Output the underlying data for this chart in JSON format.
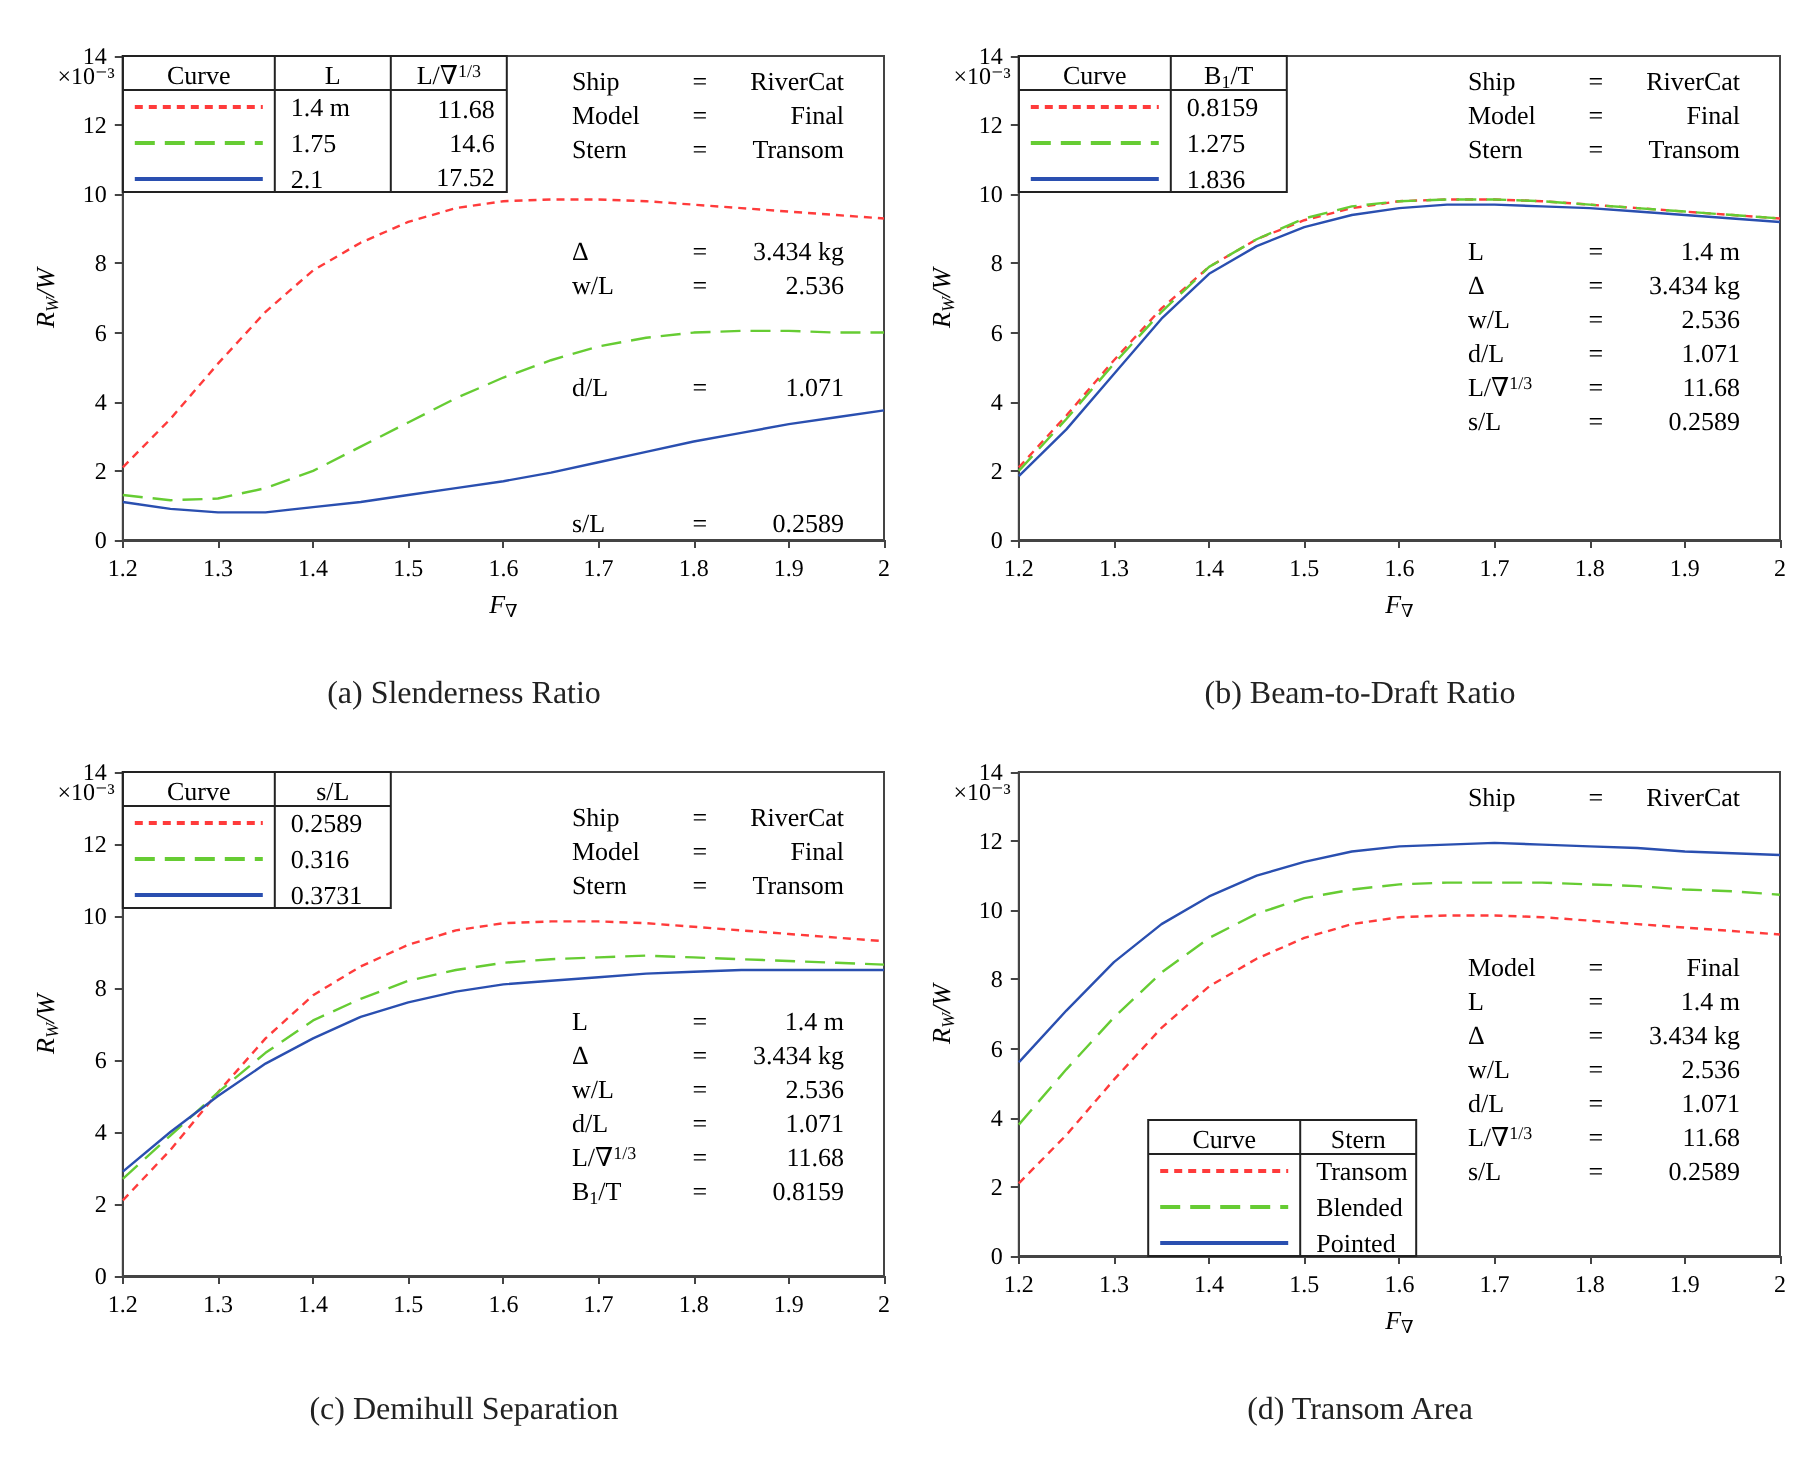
{
  "chart_data": [
    {
      "type": "line",
      "title": "(a) Slenderness Ratio",
      "subtitle": "×10⁻³",
      "xlabel": "F$_{∇}$",
      "ylabel": "R$_{W}$/W",
      "legend_title": "Curve",
      "legend": "top left",
      "marker": "none",
      "x": [
        1.2,
        1.25,
        1.3,
        1.35,
        1.4,
        1.45,
        1.5,
        1.55,
        1.6,
        1.65,
        1.7,
        1.75,
        1.8,
        1.85,
        1.9,
        1.95,
        2.0
      ],
      "xlim": [
        1.2,
        2
      ],
      "xticks": [
        1.2,
        1.3,
        1.4,
        1.5,
        1.6,
        1.7,
        1.8,
        1.9,
        2
      ],
      "ylim": [
        0,
        14
      ],
      "yticks": [
        0,
        2,
        4,
        6,
        8,
        10,
        12,
        14
      ],
      "series": [
        {
          "name": "1.4 m",
          "color": "#ff3b3b",
          "line_style": "dotted",
          "values": [
            2.1,
            3.5,
            5.1,
            6.6,
            7.8,
            8.6,
            9.2,
            9.6,
            9.8,
            9.85,
            9.85,
            9.8,
            9.7,
            9.6,
            9.5,
            9.4,
            9.3
          ]
        },
        {
          "name": "1.75",
          "color": "#66cc33",
          "line_style": "dashed",
          "values": [
            1.3,
            1.15,
            1.2,
            1.5,
            2.0,
            2.7,
            3.4,
            4.1,
            4.7,
            5.2,
            5.6,
            5.85,
            6.0,
            6.05,
            6.05,
            6.0,
            6.0
          ]
        },
        {
          "name": "2.1",
          "color": "#2a4fb0",
          "line_style": "solid",
          "values": [
            1.1,
            0.9,
            0.8,
            0.8,
            0.95,
            1.1,
            1.3,
            1.5,
            1.7,
            1.95,
            2.25,
            2.55,
            2.85,
            3.1,
            3.35,
            3.55,
            3.75
          ]
        }
      ],
      "annotations": [
        "L",
        "L/∇$^{1/3}$",
        "11.68",
        "14.6",
        "17.52",
        "Ship = RiverCat",
        "Model = Final",
        "Stern = Transom",
        "Δ = 3.434 kg",
        "w/L = 2.536",
        "d/L = 1.071",
        "s/L = 0.2589"
      ]
    },
    {
      "type": "line",
      "title": "(b) Beam-to-Draft Ratio",
      "subtitle": "×10⁻³",
      "xlabel": "F$_{∇}$",
      "ylabel": "R$_{W}$/W",
      "legend_title": "Curve",
      "legend": "top left",
      "marker": "none",
      "x": [
        1.2,
        1.25,
        1.3,
        1.35,
        1.4,
        1.45,
        1.5,
        1.55,
        1.6,
        1.65,
        1.7,
        1.75,
        1.8,
        1.85,
        1.9,
        1.95,
        2.0
      ],
      "xlim": [
        1.2,
        2
      ],
      "xticks": [
        1.2,
        1.3,
        1.4,
        1.5,
        1.6,
        1.7,
        1.8,
        1.9,
        2
      ],
      "ylim": [
        0,
        14
      ],
      "yticks": [
        0,
        2,
        4,
        6,
        8,
        10,
        12,
        14
      ],
      "series": [
        {
          "name": "0.8159",
          "color": "#ff3b3b",
          "line_style": "dotted",
          "values": [
            2.1,
            3.6,
            5.2,
            6.7,
            7.9,
            8.7,
            9.25,
            9.6,
            9.8,
            9.85,
            9.85,
            9.8,
            9.7,
            9.6,
            9.5,
            9.4,
            9.3
          ]
        },
        {
          "name": "1.275",
          "color": "#66cc33",
          "line_style": "dashed",
          "values": [
            2.0,
            3.5,
            5.1,
            6.6,
            7.9,
            8.7,
            9.3,
            9.65,
            9.8,
            9.85,
            9.85,
            9.8,
            9.7,
            9.6,
            9.5,
            9.4,
            9.3
          ]
        },
        {
          "name": "1.836",
          "color": "#2a4fb0",
          "line_style": "solid",
          "values": [
            1.85,
            3.2,
            4.8,
            6.4,
            7.7,
            8.5,
            9.05,
            9.4,
            9.6,
            9.7,
            9.7,
            9.65,
            9.6,
            9.5,
            9.4,
            9.3,
            9.2
          ]
        }
      ],
      "annotations": [
        "B$_{1}$/T",
        "Ship = RiverCat",
        "Model = Final",
        "Stern = Transom",
        "L = 1.4 m",
        "Δ = 3.434 kg",
        "w/L = 2.536",
        "d/L = 1.071",
        "L/∇$^{1/3}$ = 11.68",
        "s/L = 0.2589"
      ]
    },
    {
      "type": "line",
      "title": "(c) Demihull Separation",
      "subtitle": "×10⁻³",
      "ylabel": "R$_{W}$/W",
      "legend_title": "Curve",
      "legend": "top left",
      "marker": "none",
      "x": [
        1.2,
        1.25,
        1.3,
        1.35,
        1.4,
        1.45,
        1.5,
        1.55,
        1.6,
        1.65,
        1.7,
        1.75,
        1.8,
        1.85,
        1.9,
        1.95,
        2.0
      ],
      "xlim": [
        1.2,
        2
      ],
      "xticks": [
        1.2,
        1.3,
        1.4,
        1.5,
        1.6,
        1.7,
        1.8,
        1.9,
        2
      ],
      "ylim": [
        0,
        14
      ],
      "yticks": [
        0,
        2,
        4,
        6,
        8,
        10,
        12,
        14
      ],
      "series": [
        {
          "name": "0.2589",
          "color": "#ff3b3b",
          "line_style": "dotted",
          "values": [
            2.1,
            3.5,
            5.1,
            6.6,
            7.8,
            8.6,
            9.2,
            9.6,
            9.8,
            9.85,
            9.85,
            9.8,
            9.7,
            9.6,
            9.5,
            9.4,
            9.3
          ]
        },
        {
          "name": "0.316",
          "color": "#66cc33",
          "line_style": "dashed",
          "values": [
            2.7,
            3.9,
            5.1,
            6.2,
            7.1,
            7.7,
            8.2,
            8.5,
            8.7,
            8.8,
            8.85,
            8.9,
            8.85,
            8.8,
            8.75,
            8.7,
            8.65
          ]
        },
        {
          "name": "0.3731",
          "color": "#2a4fb0",
          "line_style": "solid",
          "values": [
            2.9,
            4.0,
            5.0,
            5.9,
            6.6,
            7.2,
            7.6,
            7.9,
            8.1,
            8.2,
            8.3,
            8.4,
            8.45,
            8.5,
            8.5,
            8.5,
            8.5
          ]
        }
      ],
      "annotations": [
        "s/L",
        "Ship = RiverCat",
        "Model = Final",
        "Stern = Transom",
        "L = 1.4 m",
        "Δ = 3.434 kg",
        "w/L = 2.536",
        "d/L = 1.071",
        "L/∇$^{1/3}$ = 11.68",
        "B$_{1}$/T = 0.8159"
      ]
    },
    {
      "type": "line",
      "title": "(d) Transom Area",
      "subtitle": "×10⁻³",
      "xlabel": "F$_{∇}$",
      "ylabel": "R$_{W}$/W",
      "legend_title": "Curve",
      "legend": "bottom",
      "marker": "none",
      "x": [
        1.2,
        1.25,
        1.3,
        1.35,
        1.4,
        1.45,
        1.5,
        1.55,
        1.6,
        1.65,
        1.7,
        1.75,
        1.8,
        1.85,
        1.9,
        1.95,
        2.0
      ],
      "xlim": [
        1.2,
        2
      ],
      "xticks": [
        1.2,
        1.3,
        1.4,
        1.5,
        1.6,
        1.7,
        1.8,
        1.9,
        2
      ],
      "ylim": [
        0,
        14
      ],
      "yticks": [
        0,
        2,
        4,
        6,
        8,
        10,
        12,
        14
      ],
      "series": [
        {
          "name": "Transom",
          "color": "#ff3b3b",
          "line_style": "dotted",
          "values": [
            2.1,
            3.5,
            5.1,
            6.6,
            7.8,
            8.6,
            9.2,
            9.6,
            9.8,
            9.85,
            9.85,
            9.8,
            9.7,
            9.6,
            9.5,
            9.4,
            9.3
          ]
        },
        {
          "name": "Blended",
          "color": "#66cc33",
          "line_style": "dashed",
          "values": [
            3.8,
            5.4,
            6.9,
            8.2,
            9.2,
            9.9,
            10.35,
            10.6,
            10.75,
            10.8,
            10.8,
            10.8,
            10.75,
            10.7,
            10.6,
            10.55,
            10.45
          ]
        },
        {
          "name": "Pointed",
          "color": "#2a4fb0",
          "line_style": "solid",
          "values": [
            5.6,
            7.1,
            8.5,
            9.6,
            10.4,
            11.0,
            11.4,
            11.7,
            11.85,
            11.9,
            11.95,
            11.9,
            11.85,
            11.8,
            11.7,
            11.65,
            11.6
          ]
        }
      ],
      "annotations": [
        "Stern",
        "Ship = RiverCat",
        "Model = Final",
        "L = 1.4 m",
        "Δ = 3.434 kg",
        "w/L = 2.536",
        "d/L = 1.071",
        "L/∇$^{1/3}$ = 11.68",
        "s/L = 0.2589"
      ]
    }
  ]
}
